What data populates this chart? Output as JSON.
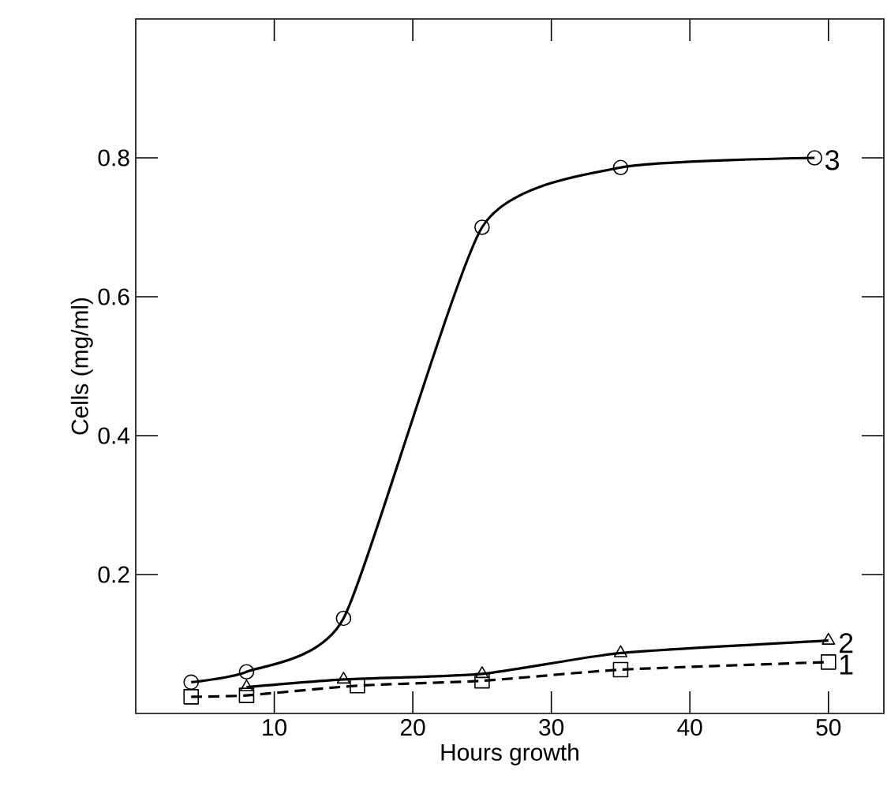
{
  "chart_data": {
    "type": "line",
    "xlabel": "Hours growth",
    "ylabel": "Cells (mg/ml)",
    "xlim": [
      0,
      54
    ],
    "ylim": [
      0,
      1.0
    ],
    "xticks": [
      10,
      20,
      30,
      40,
      50
    ],
    "yticks": [
      0.2,
      0.4,
      0.6,
      0.8
    ],
    "grid": false,
    "series": [
      {
        "name": "1",
        "color": "#000000",
        "marker": "square",
        "line_style": "dashed",
        "x": [
          4,
          8,
          16,
          25,
          35,
          50
        ],
        "values": [
          0.024,
          0.026,
          0.04,
          0.047,
          0.063,
          0.074
        ]
      },
      {
        "name": "2",
        "color": "#000000",
        "marker": "triangle",
        "line_style": "solid",
        "x": [
          8,
          15,
          25,
          35,
          50
        ],
        "values": [
          0.038,
          0.049,
          0.057,
          0.087,
          0.105
        ]
      },
      {
        "name": "3",
        "color": "#000000",
        "marker": "circle",
        "line_style": "solid",
        "x": [
          4,
          8,
          15,
          25,
          35,
          49
        ],
        "values": [
          0.045,
          0.06,
          0.137,
          0.7,
          0.786,
          0.8
        ]
      }
    ]
  }
}
